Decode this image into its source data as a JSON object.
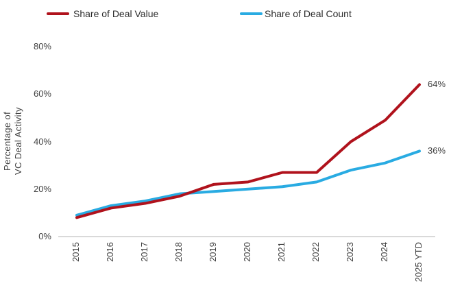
{
  "chart_data": {
    "type": "line",
    "categories": [
      "2015",
      "2016",
      "2017",
      "2018",
      "2019",
      "2020",
      "2021",
      "2022",
      "2023",
      "2024",
      "2025 YTD"
    ],
    "series": [
      {
        "name": "Share of Deal Value",
        "color": "#b0121c",
        "values": [
          8,
          12,
          14,
          17,
          22,
          23,
          27,
          27,
          40,
          49,
          64
        ],
        "end_label": "64%"
      },
      {
        "name": "Share of Deal Count",
        "color": "#29abe2",
        "values": [
          9,
          13,
          15,
          18,
          19,
          20,
          21,
          23,
          28,
          31,
          36
        ],
        "end_label": "36%"
      }
    ],
    "title": "",
    "xlabel": "",
    "ylabel": "Percentage of VC Deal Activity",
    "ylim": [
      0,
      80
    ],
    "y_tick_step": 20,
    "grid": false,
    "legend_position": "top"
  },
  "y_axis": {
    "title_lines": [
      "Percentage of",
      "VC Deal Activity"
    ],
    "tick_labels": [
      "80%",
      "60%",
      "40%",
      "20%",
      "0%"
    ],
    "tick_values": [
      80,
      60,
      40,
      20,
      0
    ]
  }
}
